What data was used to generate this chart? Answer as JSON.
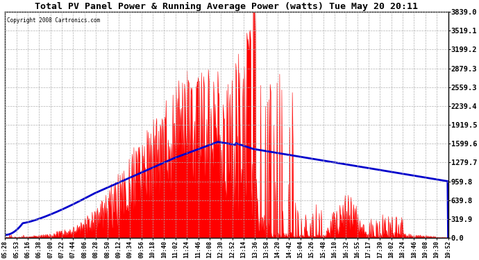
{
  "title": "Total PV Panel Power & Running Average Power (watts) Tue May 20 20:11",
  "copyright": "Copyright 2008 Cartronics.com",
  "background_color": "#ffffff",
  "plot_bg_color": "#ffffff",
  "grid_color": "#b0b0b0",
  "bar_color": "#ff0000",
  "line_color": "#0000cc",
  "yticks": [
    0.0,
    319.9,
    639.8,
    959.8,
    1279.7,
    1599.6,
    1919.5,
    2239.4,
    2559.3,
    2879.3,
    3199.2,
    3519.1,
    3839.0
  ],
  "ylim": [
    0,
    3839.0
  ],
  "xtick_labels": [
    "05:28",
    "05:53",
    "06:16",
    "06:38",
    "07:00",
    "07:22",
    "07:44",
    "08:06",
    "08:28",
    "08:50",
    "09:12",
    "09:34",
    "09:56",
    "10:18",
    "10:40",
    "11:02",
    "11:24",
    "11:46",
    "12:08",
    "12:30",
    "12:52",
    "13:14",
    "13:36",
    "13:58",
    "14:20",
    "14:42",
    "15:04",
    "15:26",
    "15:48",
    "16:10",
    "16:32",
    "16:55",
    "17:17",
    "17:39",
    "18:02",
    "18:24",
    "18:46",
    "19:08",
    "19:30",
    "19:52"
  ],
  "n_points": 840,
  "figsize": [
    6.9,
    3.75
  ],
  "dpi": 100
}
